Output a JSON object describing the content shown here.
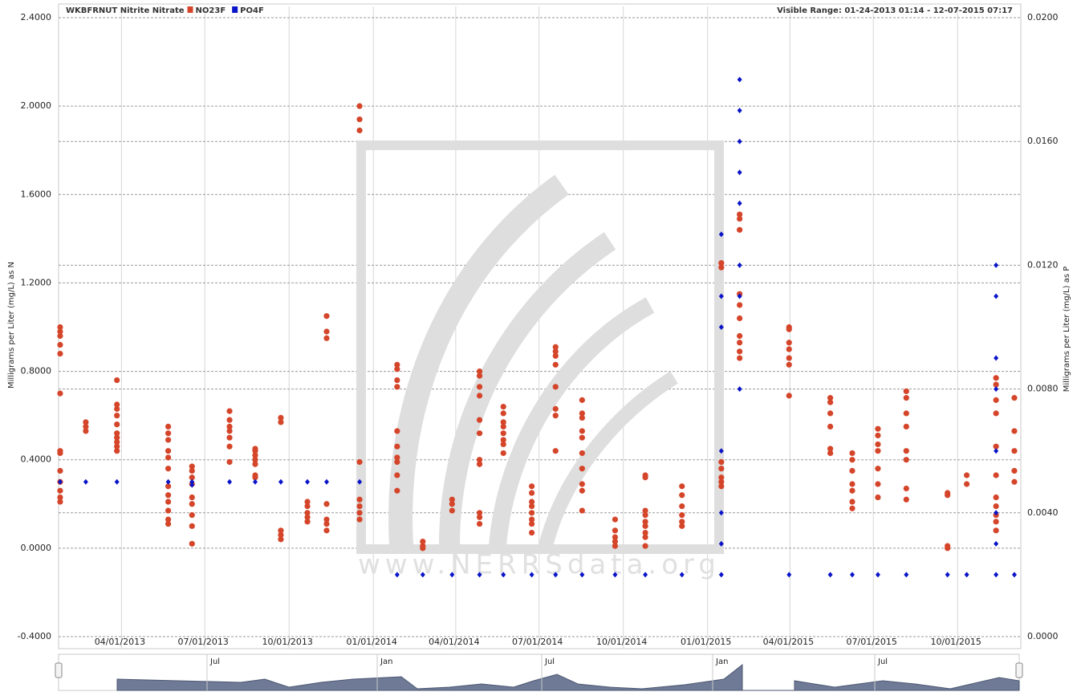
{
  "chart_data": {
    "type": "scatter",
    "title": "WKBFRNUT Nitrite  Nitrate",
    "range_label": "Visible Range: 01-24-2013 01:14 - 12-07-2015 07:17",
    "watermark": "www.NERRSdata.org",
    "ylabel": "Milligrams per Liter (mg/L) as N",
    "y2label": "Milligrams per Liter (mg/L) as P",
    "xlim": [
      "2013-01-24T01:14",
      "2015-12-07T07:17"
    ],
    "xticks": [
      {
        "value": "2013-04-01",
        "label": "04/01/2013"
      },
      {
        "value": "2013-07-01",
        "label": "07/01/2013"
      },
      {
        "value": "2013-10-01",
        "label": "10/01/2013"
      },
      {
        "value": "2014-01-01",
        "label": "01/01/2014"
      },
      {
        "value": "2014-04-01",
        "label": "04/01/2014"
      },
      {
        "value": "2014-07-01",
        "label": "07/01/2014"
      },
      {
        "value": "2014-10-01",
        "label": "10/01/2014"
      },
      {
        "value": "2015-01-01",
        "label": "01/01/2015"
      },
      {
        "value": "2015-04-01",
        "label": "04/01/2015"
      },
      {
        "value": "2015-07-01",
        "label": "07/01/2015"
      },
      {
        "value": "2015-10-01",
        "label": "10/01/2015"
      }
    ],
    "ylim": [
      -0.4,
      2.4
    ],
    "yticks": [
      {
        "value": -0.4,
        "label": "-0.4000"
      },
      {
        "value": 0,
        "label": "0.0000"
      },
      {
        "value": 0.4,
        "label": "0.4000"
      },
      {
        "value": 0.8,
        "label": "0.8000"
      },
      {
        "value": 1.2,
        "label": "1.2000"
      },
      {
        "value": 1.6,
        "label": "1.6000"
      },
      {
        "value": 2.0,
        "label": "2.0000"
      },
      {
        "value": 2.4,
        "label": "2.4000"
      }
    ],
    "y2lim": [
      0,
      0.02
    ],
    "y2ticks": [
      {
        "value": 0,
        "label": "0.0000"
      },
      {
        "value": 0.004,
        "label": "0.0040"
      },
      {
        "value": 0.008,
        "label": "0.0080"
      },
      {
        "value": 0.012,
        "label": "0.0120"
      },
      {
        "value": 0.016,
        "label": "0.0160"
      },
      {
        "value": 0.02,
        "label": "0.0200"
      }
    ],
    "grid": true,
    "navigator_labels": [
      "Jul",
      "Jan",
      "Jul",
      "Jan",
      "Jul"
    ],
    "series": [
      {
        "name": "NO23F",
        "color": "#d4452a",
        "marker": "circle",
        "x": [
          "2013-01-24",
          "2013-01-24",
          "2013-01-24",
          "2013-01-24",
          "2013-01-24",
          "2013-01-24",
          "2013-01-24",
          "2013-01-24",
          "2013-01-24",
          "2013-01-24",
          "2013-01-24",
          "2013-01-24",
          "2013-01-24",
          "2013-02-21",
          "2013-02-21",
          "2013-02-21",
          "2013-03-27",
          "2013-03-27",
          "2013-03-27",
          "2013-03-27",
          "2013-03-27",
          "2013-03-27",
          "2013-03-27",
          "2013-03-27",
          "2013-03-27",
          "2013-03-27",
          "2013-05-22",
          "2013-05-22",
          "2013-05-22",
          "2013-05-22",
          "2013-05-22",
          "2013-05-22",
          "2013-05-22",
          "2013-05-22",
          "2013-05-22",
          "2013-05-22",
          "2013-05-22",
          "2013-05-22",
          "2013-06-17",
          "2013-06-17",
          "2013-06-17",
          "2013-06-17",
          "2013-06-17",
          "2013-06-17",
          "2013-06-17",
          "2013-06-17",
          "2013-06-17",
          "2013-07-28",
          "2013-07-28",
          "2013-07-28",
          "2013-07-28",
          "2013-07-28",
          "2013-07-28",
          "2013-07-28",
          "2013-08-25",
          "2013-08-25",
          "2013-08-25",
          "2013-08-25",
          "2013-08-25",
          "2013-08-25",
          "2013-08-25",
          "2013-09-22",
          "2013-09-22",
          "2013-09-22",
          "2013-09-22",
          "2013-09-22",
          "2013-10-21",
          "2013-10-21",
          "2013-10-21",
          "2013-10-21",
          "2013-10-21",
          "2013-11-11",
          "2013-11-11",
          "2013-11-11",
          "2013-11-11",
          "2013-11-11",
          "2013-11-11",
          "2013-11-11",
          "2013-12-17",
          "2013-12-17",
          "2013-12-17",
          "2013-12-17",
          "2013-12-17",
          "2013-12-17",
          "2013-12-17",
          "2013-12-17",
          "2014-01-27",
          "2014-01-27",
          "2014-01-27",
          "2014-01-27",
          "2014-01-27",
          "2014-01-27",
          "2014-01-27",
          "2014-01-27",
          "2014-01-27",
          "2014-01-27",
          "2014-02-24",
          "2014-02-24",
          "2014-02-24",
          "2014-03-28",
          "2014-03-28",
          "2014-03-28",
          "2014-04-27",
          "2014-04-27",
          "2014-04-27",
          "2014-04-27",
          "2014-04-27",
          "2014-04-27",
          "2014-04-27",
          "2014-04-27",
          "2014-04-27",
          "2014-04-27",
          "2014-04-27",
          "2014-05-23",
          "2014-05-23",
          "2014-05-23",
          "2014-05-23",
          "2014-05-23",
          "2014-05-23",
          "2014-05-23",
          "2014-05-23",
          "2014-06-23",
          "2014-06-23",
          "2014-06-23",
          "2014-06-23",
          "2014-06-23",
          "2014-06-23",
          "2014-06-23",
          "2014-06-23",
          "2014-07-19",
          "2014-07-19",
          "2014-07-19",
          "2014-07-19",
          "2014-07-19",
          "2014-07-19",
          "2014-07-19",
          "2014-07-19",
          "2014-08-17",
          "2014-08-17",
          "2014-08-17",
          "2014-08-17",
          "2014-08-17",
          "2014-08-17",
          "2014-08-17",
          "2014-08-17",
          "2014-08-17",
          "2014-08-17",
          "2014-09-22",
          "2014-09-22",
          "2014-09-22",
          "2014-09-22",
          "2014-09-22",
          "2014-10-25",
          "2014-10-25",
          "2014-10-25",
          "2014-10-25",
          "2014-10-25",
          "2014-10-25",
          "2014-10-25",
          "2014-10-25",
          "2014-10-25",
          "2014-12-04",
          "2014-12-04",
          "2014-12-04",
          "2014-12-04",
          "2014-12-04",
          "2014-12-04",
          "2015-01-16",
          "2015-01-16",
          "2015-01-16",
          "2015-01-16",
          "2015-01-16",
          "2015-01-16",
          "2015-01-16",
          "2015-02-05",
          "2015-02-05",
          "2015-02-05",
          "2015-02-05",
          "2015-02-05",
          "2015-02-05",
          "2015-02-05",
          "2015-02-05",
          "2015-02-05",
          "2015-02-05",
          "2015-03-31",
          "2015-03-31",
          "2015-03-31",
          "2015-03-31",
          "2015-03-31",
          "2015-03-31",
          "2015-03-31",
          "2015-05-15",
          "2015-05-15",
          "2015-05-15",
          "2015-05-15",
          "2015-05-15",
          "2015-05-15",
          "2015-06-08",
          "2015-06-08",
          "2015-06-08",
          "2015-06-08",
          "2015-06-08",
          "2015-06-08",
          "2015-06-08",
          "2015-07-06",
          "2015-07-06",
          "2015-07-06",
          "2015-07-06",
          "2015-07-06",
          "2015-07-06",
          "2015-07-06",
          "2015-08-06",
          "2015-08-06",
          "2015-08-06",
          "2015-08-06",
          "2015-08-06",
          "2015-08-06",
          "2015-08-06",
          "2015-08-06",
          "2015-09-20",
          "2015-09-20",
          "2015-09-20",
          "2015-09-20",
          "2015-10-11",
          "2015-10-11",
          "2015-11-12",
          "2015-11-12",
          "2015-11-12",
          "2015-11-12",
          "2015-11-12",
          "2015-11-12",
          "2015-11-12",
          "2015-11-12",
          "2015-11-12",
          "2015-11-12",
          "2015-11-12",
          "2015-12-02",
          "2015-12-02",
          "2015-12-02",
          "2015-12-02",
          "2015-12-02"
        ],
        "values": [
          1.0,
          0.98,
          0.96,
          0.92,
          0.88,
          0.7,
          0.44,
          0.43,
          0.35,
          0.3,
          0.26,
          0.23,
          0.21,
          0.57,
          0.55,
          0.53,
          0.76,
          0.65,
          0.63,
          0.6,
          0.56,
          0.52,
          0.5,
          0.48,
          0.46,
          0.44,
          0.55,
          0.52,
          0.49,
          0.44,
          0.41,
          0.36,
          0.28,
          0.24,
          0.21,
          0.17,
          0.13,
          0.11,
          0.37,
          0.35,
          0.32,
          0.29,
          0.23,
          0.2,
          0.15,
          0.1,
          0.02,
          0.62,
          0.58,
          0.55,
          0.53,
          0.5,
          0.46,
          0.39,
          0.45,
          0.44,
          0.42,
          0.4,
          0.38,
          0.33,
          0.32,
          0.59,
          0.57,
          0.08,
          0.06,
          0.04,
          0.21,
          0.19,
          0.16,
          0.14,
          0.12,
          1.05,
          0.98,
          0.95,
          0.2,
          0.13,
          0.11,
          0.08,
          2.0,
          1.94,
          1.89,
          0.39,
          0.22,
          0.19,
          0.16,
          0.13,
          0.83,
          0.81,
          0.76,
          0.73,
          0.53,
          0.46,
          0.41,
          0.39,
          0.33,
          0.26,
          0.03,
          0.01,
          0,
          0.22,
          0.2,
          0.17,
          0.8,
          0.78,
          0.73,
          0.69,
          0.58,
          0.52,
          0.4,
          0.38,
          0.16,
          0.14,
          0.11,
          0.64,
          0.61,
          0.57,
          0.55,
          0.52,
          0.49,
          0.47,
          0.43,
          0.28,
          0.25,
          0.21,
          0.19,
          0.16,
          0.13,
          0.11,
          0.07,
          0.91,
          0.89,
          0.87,
          0.83,
          0.73,
          0.63,
          0.6,
          0.44,
          0.67,
          0.61,
          0.59,
          0.53,
          0.5,
          0.43,
          0.36,
          0.29,
          0.26,
          0.17,
          0.13,
          0.08,
          0.05,
          0.03,
          0.01,
          0.33,
          0.32,
          0.17,
          0.15,
          0.12,
          0.1,
          0.07,
          0.05,
          0.01,
          0.28,
          0.24,
          0.19,
          0.15,
          0.12,
          0.1,
          1.29,
          1.27,
          0.39,
          0.36,
          0.32,
          0.3,
          0.28,
          1.51,
          1.49,
          1.44,
          1.15,
          1.1,
          1.04,
          0.96,
          0.93,
          0.89,
          0.86,
          1.0,
          0.99,
          0.93,
          0.9,
          0.86,
          0.83,
          0.69,
          0.68,
          0.66,
          0.61,
          0.55,
          0.45,
          0.43,
          0.43,
          0.4,
          0.35,
          0.29,
          0.26,
          0.21,
          0.18,
          0.54,
          0.51,
          0.47,
          0.44,
          0.36,
          0.29,
          0.23,
          0.71,
          0.68,
          0.61,
          0.55,
          0.44,
          0.4,
          0.27,
          0.22,
          0.25,
          0.24,
          0.01,
          0,
          0.33,
          0.29,
          0.77,
          0.74,
          0.67,
          0.61,
          0.46,
          0.33,
          0.23,
          0.19,
          0.15,
          0.12,
          0.08,
          0.68,
          0.53,
          0.44,
          0.35,
          0.3
        ]
      },
      {
        "name": "PO4F",
        "color": "#0a14c8",
        "marker": "diamond",
        "axis": "y2",
        "x": [
          "2013-01-24",
          "2013-02-21",
          "2013-03-27",
          "2013-05-22",
          "2013-06-17",
          "2013-06-17",
          "2013-07-28",
          "2013-08-25",
          "2013-09-22",
          "2013-10-21",
          "2013-11-11",
          "2013-12-17",
          "2014-01-27",
          "2014-02-24",
          "2014-03-28",
          "2014-04-27",
          "2014-05-23",
          "2014-06-23",
          "2014-07-19",
          "2014-08-17",
          "2014-09-22",
          "2014-10-25",
          "2014-12-04",
          "2015-01-16",
          "2015-01-16",
          "2015-01-16",
          "2015-01-16",
          "2015-01-16",
          "2015-01-16",
          "2015-01-16",
          "2015-02-05",
          "2015-02-05",
          "2015-02-05",
          "2015-02-05",
          "2015-02-05",
          "2015-02-05",
          "2015-02-05",
          "2015-02-05",
          "2015-03-31",
          "2015-05-15",
          "2015-06-08",
          "2015-07-06",
          "2015-08-06",
          "2015-09-20",
          "2015-10-11",
          "2015-11-12",
          "2015-11-12",
          "2015-11-12",
          "2015-11-12",
          "2015-11-12",
          "2015-11-12",
          "2015-11-12",
          "2015-11-12",
          "2015-12-02"
        ],
        "values": [
          0.005,
          0.005,
          0.005,
          0.005,
          0.005,
          0.0049,
          0.005,
          0.005,
          0.005,
          0.005,
          0.005,
          0.005,
          0.002,
          0.002,
          0.002,
          0.002,
          0.002,
          0.002,
          0.002,
          0.002,
          0.002,
          0.002,
          0.002,
          0.013,
          0.011,
          0.01,
          0.006,
          0.004,
          0.003,
          0.002,
          0.018,
          0.017,
          0.016,
          0.015,
          0.014,
          0.012,
          0.011,
          0.008,
          0.002,
          0.002,
          0.002,
          0.002,
          0.002,
          0.002,
          0.002,
          0.012,
          0.011,
          0.009,
          0.008,
          0.006,
          0.004,
          0.003,
          0.002,
          0.002
        ]
      }
    ]
  }
}
